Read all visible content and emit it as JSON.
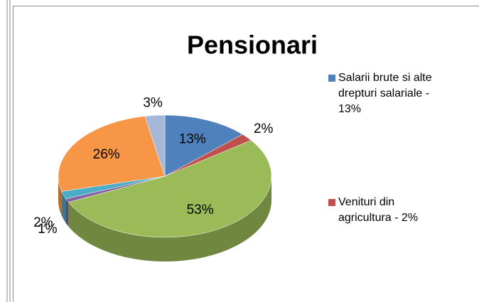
{
  "chart_data": {
    "type": "pie3d",
    "title": "Pensionari",
    "categories": [
      "Salarii brute si alte drepturi salariale - 13%",
      "Venituri din agricultura - 2%",
      null,
      null,
      null,
      null,
      null
    ],
    "values": [
      13,
      2,
      53,
      1,
      2,
      26,
      3
    ],
    "value_labels": [
      "13%",
      "2%",
      "53%",
      "1%",
      "2%",
      "26%",
      "3%"
    ],
    "colors": [
      "#4f81bd",
      "#c0504d",
      "#9bbb59",
      "#8064a2",
      "#4bacc6",
      "#f79646",
      "#a5b8d8"
    ]
  }
}
